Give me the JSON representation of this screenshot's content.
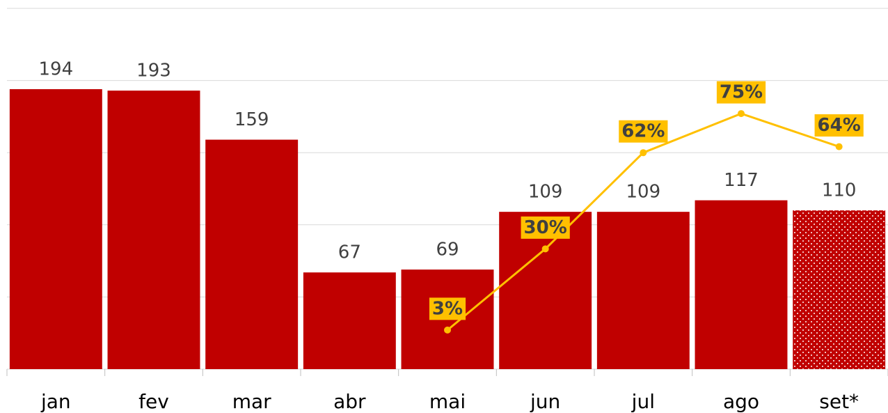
{
  "chart_data": {
    "type": "bar_line",
    "categories": [
      "jan",
      "fev",
      "mar",
      "abr",
      "mai",
      "jun",
      "jul",
      "ago",
      "set*"
    ],
    "series": [
      {
        "type": "bar",
        "color": "#c00000",
        "values": [
          194,
          193,
          159,
          67,
          69,
          109,
          109,
          117,
          110
        ],
        "pattern": [
          null,
          null,
          null,
          null,
          null,
          null,
          null,
          null,
          "dots"
        ]
      },
      {
        "type": "line",
        "axis": "y2",
        "color": "#ffc000",
        "values": [
          null,
          null,
          null,
          null,
          3,
          30,
          62,
          75,
          64
        ],
        "value_labels": [
          null,
          null,
          null,
          null,
          "3%",
          "30%",
          "62%",
          "75%",
          "64%"
        ]
      }
    ],
    "ylim": [
      0,
      250
    ],
    "yticks": [
      0,
      50,
      100,
      150,
      200,
      250
    ],
    "y2lim": [
      -10,
      110
    ],
    "grid": true
  }
}
